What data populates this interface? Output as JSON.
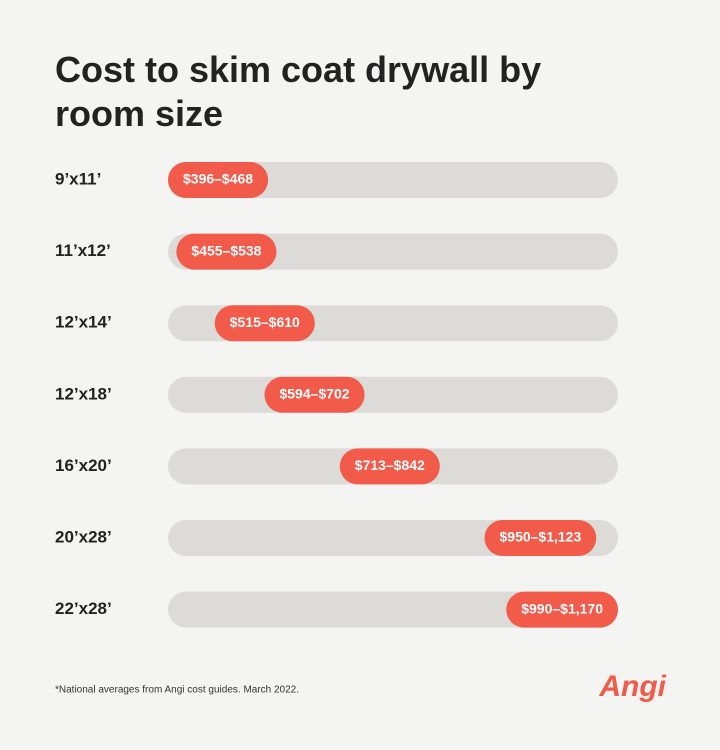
{
  "chart_data": {
    "type": "range-bar",
    "title": "Cost to skim coat drywall by room size",
    "categories": [
      "9’x11’",
      "11’x12’",
      "12’x14’",
      "12’x18’",
      "16’x20’",
      "20’x28’",
      "22’x28’"
    ],
    "values": [
      [
        396,
        468
      ],
      [
        455,
        538
      ],
      [
        515,
        610
      ],
      [
        594,
        702
      ],
      [
        713,
        842
      ],
      [
        950,
        1123
      ],
      [
        990,
        1170
      ]
    ],
    "value_labels": [
      "$396–$468",
      "$455–$538",
      "$515–$610",
      "$594–$702",
      "$713–$842",
      "$950–$1,123",
      "$990–$1,170"
    ],
    "color": "#f25a4a",
    "track_color": "#dcdbd8",
    "footnote": "*National averages from Angi cost guides. March 2022.",
    "logo": "Angi"
  }
}
